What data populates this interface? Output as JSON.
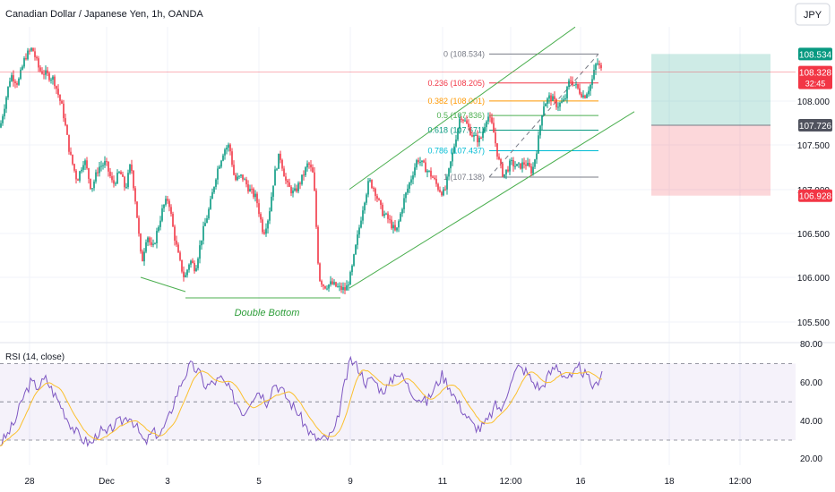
{
  "header": {
    "title": "Canadian Dollar / Japanese Yen, 1h, OANDA",
    "currency_button": "JPY"
  },
  "chart_data": [
    {
      "type": "candlestick",
      "title": "Canadian Dollar / Japanese Yen, 1h, OANDA",
      "ylim": [
        105.35,
        109.1
      ],
      "y_ticks": [
        "108.000",
        "107.500",
        "107.000",
        "106.500",
        "106.000",
        "105.500"
      ],
      "price_labels": [
        {
          "text": "108.534",
          "price": 108.534,
          "color": "#089981"
        },
        {
          "text": "108.328",
          "sub": "32:45",
          "price": 108.328,
          "color": "#f23645"
        },
        {
          "text": "107.726",
          "price": 107.726,
          "color": "#50535e"
        },
        {
          "text": "106.928",
          "price": 106.928,
          "color": "#f23645"
        }
      ],
      "x_ticks": [
        "28",
        "Dec",
        "3",
        "5",
        "9",
        "11",
        "12:00",
        "16",
        "18",
        "12:00"
      ],
      "annotations": [
        "Double Bottom"
      ],
      "fib_levels": [
        {
          "label": "0 (108.534)",
          "price": 108.534,
          "color": "#787b86"
        },
        {
          "label": "0.236 (108.205)",
          "price": 108.205,
          "color": "#f23645"
        },
        {
          "label": "0.382 (108.001)",
          "price": 108.001,
          "color": "#ff9800"
        },
        {
          "label": "0.5 (107.836)",
          "price": 107.836,
          "color": "#4caf50"
        },
        {
          "label": "0.618 (107.671)",
          "price": 107.671,
          "color": "#089981"
        },
        {
          "label": "0.786 (107.437)",
          "price": 107.437,
          "color": "#00bcd4"
        },
        {
          "label": "1 (107.138)",
          "price": 107.138,
          "color": "#787b86"
        }
      ],
      "position": {
        "entry": 107.726,
        "target": 108.534,
        "stop": 106.928
      },
      "last_price": 108.328,
      "ohlc_path": [
        [
          0,
          107.7
        ],
        [
          6,
          108.0
        ],
        [
          12,
          108.3
        ],
        [
          20,
          108.2
        ],
        [
          28,
          108.5
        ],
        [
          36,
          108.6
        ],
        [
          44,
          108.35
        ],
        [
          52,
          108.3
        ],
        [
          60,
          108.25
        ],
        [
          70,
          107.9
        ],
        [
          78,
          107.4
        ],
        [
          86,
          107.1
        ],
        [
          94,
          107.35
        ],
        [
          102,
          107.0
        ],
        [
          110,
          107.25
        ],
        [
          118,
          107.3
        ],
        [
          126,
          107.05
        ],
        [
          134,
          107.2
        ],
        [
          140,
          107.0
        ],
        [
          146,
          107.3
        ],
        [
          152,
          106.8
        ],
        [
          158,
          106.15
        ],
        [
          164,
          106.5
        ],
        [
          170,
          106.3
        ],
        [
          176,
          106.55
        ],
        [
          182,
          106.8
        ],
        [
          188,
          106.9
        ],
        [
          194,
          106.5
        ],
        [
          200,
          106.2
        ],
        [
          206,
          105.98
        ],
        [
          212,
          106.2
        ],
        [
          218,
          106.1
        ],
        [
          226,
          106.5
        ],
        [
          234,
          106.8
        ],
        [
          242,
          107.2
        ],
        [
          250,
          107.45
        ],
        [
          256,
          107.5
        ],
        [
          262,
          107.1
        ],
        [
          270,
          107.15
        ],
        [
          278,
          107.0
        ],
        [
          286,
          106.9
        ],
        [
          294,
          106.5
        ],
        [
          300,
          106.7
        ],
        [
          306,
          107.15
        ],
        [
          312,
          107.4
        ],
        [
          320,
          107.05
        ],
        [
          328,
          106.95
        ],
        [
          336,
          107.1
        ],
        [
          344,
          107.3
        ],
        [
          350,
          107.15
        ],
        [
          356,
          106.0
        ],
        [
          362,
          105.9
        ],
        [
          370,
          105.93
        ],
        [
          378,
          105.88
        ],
        [
          386,
          105.86
        ],
        [
          392,
          106.05
        ],
        [
          398,
          106.4
        ],
        [
          406,
          106.85
        ],
        [
          412,
          107.1
        ],
        [
          418,
          107.0
        ],
        [
          426,
          106.75
        ],
        [
          434,
          106.65
        ],
        [
          442,
          106.5
        ],
        [
          450,
          106.85
        ],
        [
          458,
          107.1
        ],
        [
          466,
          107.35
        ],
        [
          474,
          107.25
        ],
        [
          482,
          107.15
        ],
        [
          490,
          107.0
        ],
        [
          496,
          106.95
        ],
        [
          502,
          107.25
        ],
        [
          508,
          107.55
        ],
        [
          514,
          107.85
        ],
        [
          520,
          107.75
        ],
        [
          528,
          107.6
        ],
        [
          536,
          107.55
        ],
        [
          544,
          107.85
        ],
        [
          550,
          107.7
        ],
        [
          556,
          107.35
        ],
        [
          562,
          107.15
        ],
        [
          570,
          107.3
        ],
        [
          578,
          107.25
        ],
        [
          586,
          107.3
        ],
        [
          594,
          107.2
        ],
        [
          600,
          107.5
        ],
        [
          606,
          107.95
        ],
        [
          614,
          108.05
        ],
        [
          622,
          107.95
        ],
        [
          630,
          108.0
        ],
        [
          636,
          108.25
        ],
        [
          644,
          108.15
        ],
        [
          652,
          108.05
        ],
        [
          660,
          108.2
        ],
        [
          666,
          108.45
        ],
        [
          672,
          108.33
        ]
      ]
    },
    {
      "type": "line",
      "title": "RSI (14, close)",
      "ylim": [
        15,
        82
      ],
      "y_ticks": [
        "80.00",
        "60.00",
        "40.00",
        "20.00"
      ],
      "bands": [
        30,
        50,
        70
      ],
      "series": [
        {
          "values": [
            28,
            33,
            40,
            52,
            60,
            58,
            62,
            55,
            48,
            40,
            34,
            30,
            28,
            35,
            33,
            38,
            40,
            43,
            36,
            28,
            34,
            33,
            40,
            52,
            62,
            69,
            66,
            58,
            60,
            62,
            57,
            50,
            44,
            52,
            56,
            50,
            60,
            56,
            50,
            45,
            38,
            32,
            30,
            31,
            35,
            55,
            72,
            68,
            60,
            62,
            56,
            58,
            66,
            62,
            55,
            52,
            50,
            57,
            64,
            58,
            50,
            44,
            38,
            36,
            40,
            48,
            46,
            62,
            68,
            66,
            60,
            57,
            64,
            69,
            64,
            62,
            68,
            63,
            57,
            66
          ]
        }
      ]
    }
  ]
}
